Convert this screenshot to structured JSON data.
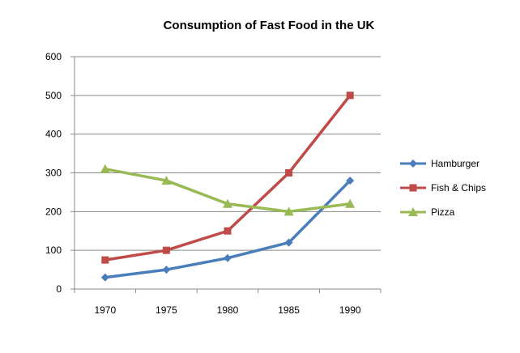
{
  "chart_data": {
    "type": "line",
    "title": "Consumption of Fast Food in the UK",
    "xlabel": "",
    "ylabel": "",
    "categories": [
      "1970",
      "1975",
      "1980",
      "1985",
      "1990"
    ],
    "ylim": [
      0,
      600
    ],
    "yticks": [
      0,
      100,
      200,
      300,
      400,
      500,
      600
    ],
    "grid": true,
    "legend_position": "right",
    "series": [
      {
        "name": "Hamburger",
        "values": [
          30,
          50,
          80,
          120,
          280
        ],
        "color": "#4a7ebb",
        "marker": "diamond"
      },
      {
        "name": "Fish & Chips",
        "values": [
          75,
          100,
          150,
          300,
          500
        ],
        "color": "#be4b48",
        "marker": "square"
      },
      {
        "name": "Pizza",
        "values": [
          310,
          280,
          220,
          200,
          220
        ],
        "color": "#98b954",
        "marker": "triangle"
      }
    ]
  }
}
